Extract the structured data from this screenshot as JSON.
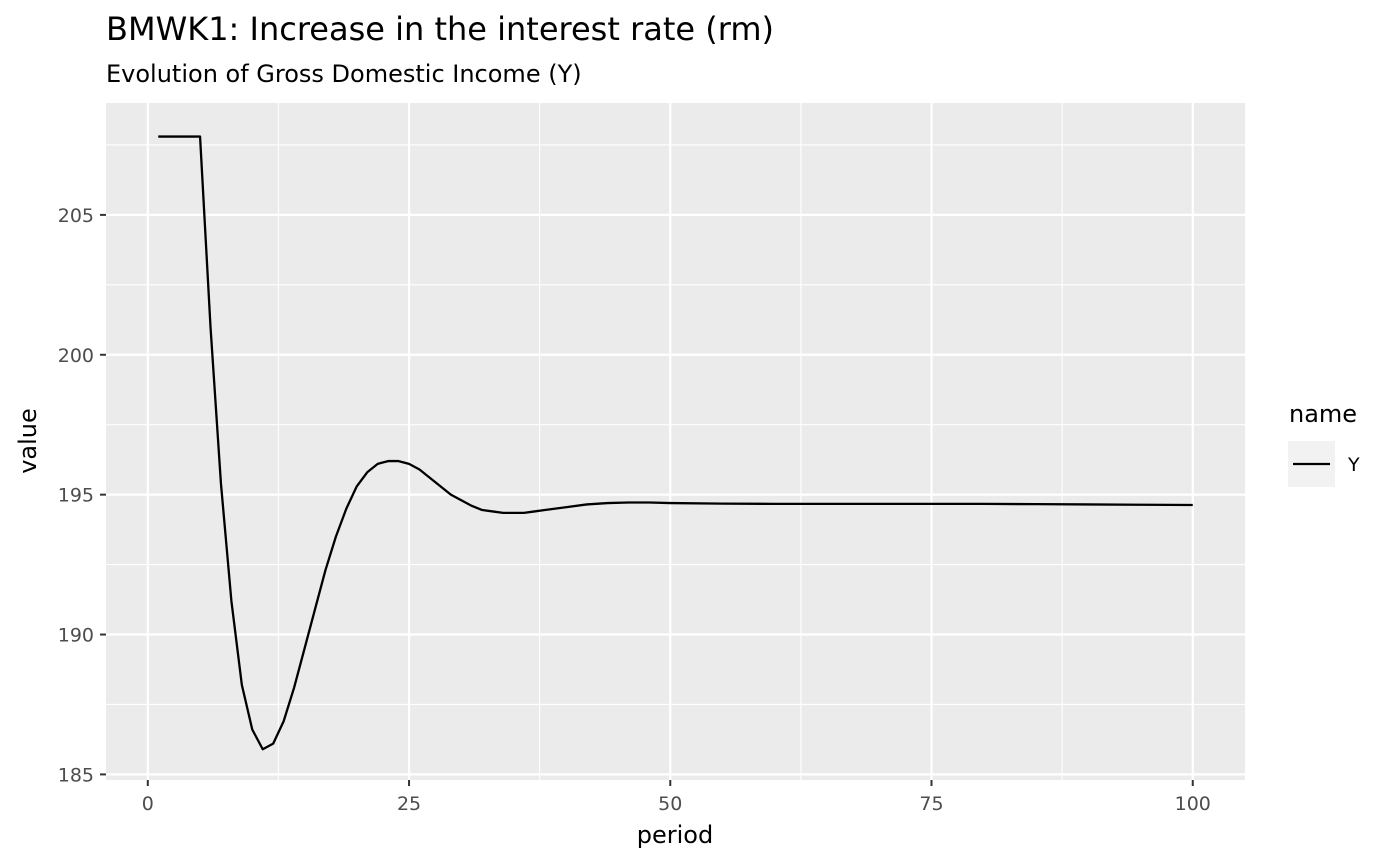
{
  "chart_data": {
    "type": "line",
    "title": "BMWK1: Increase in the interest rate (rm)",
    "subtitle": "Evolution of Gross Domestic Income (Y)",
    "xlabel": "period",
    "ylabel": "value",
    "xlim": [
      -4,
      105
    ],
    "ylim": [
      184.8,
      209.0
    ],
    "x_ticks": [
      0,
      25,
      50,
      75,
      100
    ],
    "x_tick_labels": [
      "0",
      "25",
      "50",
      "75",
      "100"
    ],
    "y_ticks": [
      185,
      190,
      195,
      200,
      205
    ],
    "y_tick_labels": [
      "185",
      "190",
      "195",
      "200",
      "205"
    ],
    "grid": true,
    "legend": {
      "title": "name",
      "position": "right",
      "entries": [
        "Y"
      ]
    },
    "colors": {
      "panel_background": "#ebebeb",
      "grid": "#ffffff",
      "line": "#000000",
      "legend_key_background": "#f2f2f2"
    },
    "series": [
      {
        "name": "Y",
        "x": [
          1,
          2,
          3,
          4,
          5,
          6,
          7,
          8,
          9,
          10,
          11,
          12,
          13,
          14,
          15,
          16,
          17,
          18,
          19,
          20,
          21,
          22,
          23,
          24,
          25,
          26,
          27,
          28,
          29,
          30,
          31,
          32,
          33,
          34,
          35,
          36,
          37,
          38,
          40,
          42,
          44,
          46,
          48,
          50,
          55,
          60,
          65,
          70,
          75,
          80,
          85,
          90,
          95,
          100
        ],
        "y": [
          207.8,
          207.8,
          207.8,
          207.8,
          207.8,
          201.0,
          195.4,
          191.2,
          188.2,
          186.6,
          185.9,
          186.1,
          186.9,
          188.1,
          189.5,
          190.9,
          192.3,
          193.5,
          194.5,
          195.3,
          195.8,
          196.1,
          196.2,
          196.2,
          196.1,
          195.9,
          195.6,
          195.3,
          195.0,
          194.8,
          194.6,
          194.45,
          194.4,
          194.35,
          194.35,
          194.35,
          194.4,
          194.45,
          194.55,
          194.65,
          194.7,
          194.72,
          194.72,
          194.7,
          194.68,
          194.67,
          194.67,
          194.67,
          194.67,
          194.67,
          194.66,
          194.65,
          194.64,
          194.63
        ]
      }
    ]
  }
}
